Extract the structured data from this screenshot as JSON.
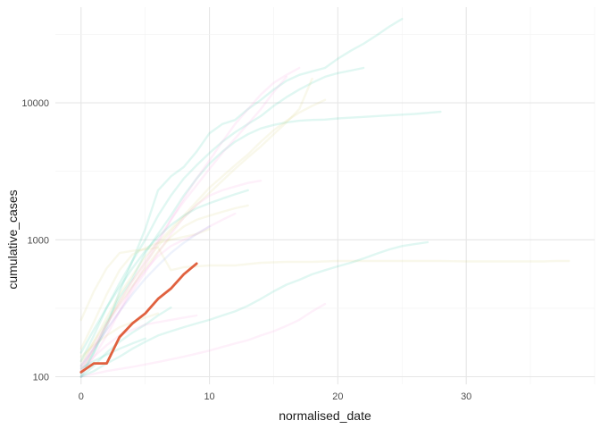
{
  "chart_data": {
    "type": "line",
    "title": "",
    "xlabel": "normalised_date",
    "ylabel": "cumulative_cases",
    "xlim": [
      -2,
      40
    ],
    "ylim": [
      88,
      50000
    ],
    "y_scale": "log10",
    "x_ticks": [
      0,
      10,
      20,
      30
    ],
    "x_tick_labels": [
      "0",
      "10",
      "20",
      "30"
    ],
    "y_ticks": [
      100,
      1000,
      10000
    ],
    "y_tick_labels": [
      "100",
      "1000",
      "10000"
    ],
    "grid": true,
    "legend": "none",
    "highlight_color": "#E0613F",
    "background_series_opacity": 0.15,
    "series": [
      {
        "color": "#2CC7A6",
        "highlight": false,
        "x": [
          0,
          1,
          2,
          3,
          4,
          5,
          6,
          7,
          8,
          9,
          10,
          11,
          12,
          13,
          14,
          15,
          16,
          17,
          18,
          19,
          20,
          21,
          22,
          23,
          24,
          25
        ],
        "y": [
          105,
          150,
          230,
          420,
          700,
          1200,
          2300,
          2900,
          3400,
          4400,
          6000,
          7000,
          7500,
          9000,
          10500,
          12500,
          14500,
          16000,
          17000,
          18000,
          21000,
          24000,
          27000,
          31000,
          36000,
          41000
        ]
      },
      {
        "color": "#2CC7A6",
        "highlight": false,
        "x": [
          0,
          1,
          2,
          3,
          4,
          5,
          6,
          7,
          8,
          9,
          10,
          11,
          12,
          13,
          14,
          15,
          16,
          17,
          18,
          19,
          20,
          21,
          22
        ],
        "y": [
          130,
          200,
          320,
          480,
          700,
          1000,
          1500,
          2100,
          2800,
          3500,
          4300,
          5200,
          6100,
          7000,
          8000,
          9500,
          11000,
          12500,
          14000,
          15500,
          16500,
          17200,
          18000
        ]
      },
      {
        "color": "#2CC7A6",
        "highlight": false,
        "x": [
          0,
          1,
          2,
          3,
          4,
          5,
          6,
          7,
          8,
          9,
          10,
          11,
          12,
          13,
          14,
          15,
          16,
          17,
          18,
          19,
          20,
          22,
          24,
          26,
          28
        ],
        "y": [
          100,
          150,
          250,
          380,
          520,
          800,
          1100,
          1500,
          2100,
          2800,
          3600,
          4400,
          5200,
          5900,
          6500,
          6900,
          7200,
          7400,
          7500,
          7550,
          7700,
          7900,
          8100,
          8300,
          8600
        ]
      },
      {
        "color": "#D9D176",
        "highlight": false,
        "x": [
          0,
          1,
          2,
          3,
          4,
          5,
          6,
          7,
          8,
          9,
          10,
          11,
          12,
          13,
          14,
          15,
          16,
          17,
          18,
          19
        ],
        "y": [
          120,
          180,
          270,
          400,
          550,
          750,
          950,
          1200,
          1500,
          1900,
          2400,
          2900,
          3500,
          4200,
          5200,
          6300,
          7400,
          8500,
          9500,
          10500
        ]
      },
      {
        "color": "#D9D176",
        "highlight": false,
        "x": [
          0,
          1,
          2,
          3,
          4,
          5,
          6,
          7,
          8,
          9,
          10,
          11,
          12,
          13,
          14,
          15,
          16,
          17,
          18
        ],
        "y": [
          110,
          160,
          240,
          360,
          500,
          680,
          900,
          1150,
          1450,
          1800,
          2200,
          2700,
          3300,
          4000,
          4800,
          5900,
          7200,
          9000,
          15000
        ]
      },
      {
        "color": "#D9D176",
        "highlight": false,
        "x": [
          0,
          1,
          2,
          3,
          4,
          5,
          6,
          7,
          8,
          9,
          10,
          12,
          14,
          16,
          18,
          20,
          22,
          24,
          26,
          28,
          30,
          32,
          34,
          36,
          37,
          38
        ],
        "y": [
          260,
          420,
          620,
          800,
          830,
          850,
          880,
          600,
          630,
          640,
          650,
          650,
          680,
          690,
          690,
          700,
          700,
          700,
          700,
          700,
          695,
          695,
          695,
          695,
          700,
          700
        ]
      },
      {
        "color": "#D9D176",
        "highlight": false,
        "x": [
          0,
          1,
          2,
          3,
          4,
          5,
          6,
          7,
          8,
          9,
          10
        ],
        "y": [
          160,
          250,
          400,
          600,
          780,
          870,
          950,
          1000,
          1050,
          1100,
          1200
        ]
      },
      {
        "color": "#F59ADE",
        "highlight": false,
        "x": [
          0,
          1,
          2,
          3,
          4,
          5,
          6,
          7,
          8,
          9,
          10,
          11,
          12,
          13,
          14,
          15,
          16,
          17
        ],
        "y": [
          100,
          140,
          200,
          300,
          450,
          650,
          950,
          1400,
          2000,
          2800,
          3800,
          5200,
          7000,
          9000,
          11500,
          14000,
          16000,
          18000
        ]
      },
      {
        "color": "#F59ADE",
        "highlight": false,
        "x": [
          0,
          1,
          2,
          3,
          4,
          5,
          6,
          7,
          8,
          9,
          10,
          11,
          12,
          13,
          14,
          15,
          16
        ],
        "y": [
          110,
          160,
          240,
          350,
          500,
          700,
          1000,
          1400,
          1900,
          2500,
          3300,
          4300,
          5500,
          7000,
          9000,
          12000,
          15500
        ]
      },
      {
        "color": "#F59ADE",
        "highlight": false,
        "x": [
          0,
          1,
          2,
          3,
          4,
          5,
          6,
          7,
          8,
          9,
          10,
          11,
          12,
          13,
          14
        ],
        "y": [
          115,
          160,
          220,
          300,
          420,
          580,
          800,
          1100,
          1450,
          1800,
          2100,
          2300,
          2450,
          2600,
          2700
        ]
      },
      {
        "color": "#F59ADE",
        "highlight": false,
        "x": [
          0,
          2,
          4,
          6,
          8,
          10,
          11,
          12,
          13,
          14,
          15,
          16,
          17,
          18,
          19
        ],
        "y": [
          100,
          110,
          118,
          128,
          140,
          155,
          165,
          175,
          185,
          200,
          215,
          235,
          260,
          300,
          340
        ]
      },
      {
        "color": "#F59ADE",
        "highlight": false,
        "x": [
          0,
          1,
          2,
          3,
          4,
          5,
          6,
          7,
          8,
          9,
          10,
          11,
          12
        ],
        "y": [
          120,
          170,
          240,
          330,
          450,
          600,
          760,
          900,
          1000,
          1100,
          1250,
          1400,
          1550
        ]
      },
      {
        "color": "#2CC7A6",
        "highlight": false,
        "x": [
          0,
          1,
          2,
          3,
          4,
          5,
          6,
          7,
          8,
          9,
          10,
          11,
          12,
          13,
          14,
          15,
          16,
          17,
          18,
          19,
          20,
          21,
          22,
          23,
          24,
          25,
          26,
          27
        ],
        "y": [
          100,
          110,
          125,
          140,
          160,
          180,
          200,
          215,
          230,
          245,
          260,
          280,
          300,
          330,
          370,
          420,
          470,
          510,
          560,
          600,
          640,
          680,
          730,
          790,
          850,
          900,
          930,
          960
        ]
      },
      {
        "color": "#2CC7A6",
        "highlight": false,
        "x": [
          0,
          1,
          2,
          3,
          4,
          5,
          6,
          7,
          8,
          9,
          10,
          11,
          12,
          13
        ],
        "y": [
          150,
          220,
          320,
          450,
          620,
          830,
          1050,
          1280,
          1500,
          1700,
          1850,
          2000,
          2150,
          2300
        ]
      },
      {
        "color": "#2CC7A6",
        "highlight": false,
        "x": [
          0,
          1,
          2,
          3,
          4,
          5,
          6,
          7
        ],
        "y": [
          100,
          120,
          150,
          180,
          210,
          240,
          280,
          320
        ]
      },
      {
        "color": "#D9D176",
        "highlight": false,
        "x": [
          0,
          1,
          2,
          3,
          4,
          5,
          6,
          7,
          8,
          9,
          10,
          11,
          12,
          13
        ],
        "y": [
          130,
          180,
          250,
          340,
          460,
          620,
          820,
          1050,
          1250,
          1400,
          1500,
          1600,
          1700,
          1780
        ]
      },
      {
        "color": "#F59ADE",
        "highlight": false,
        "x": [
          0,
          1,
          2,
          3,
          4,
          5,
          6,
          7,
          8,
          9
        ],
        "y": [
          110,
          140,
          170,
          200,
          220,
          240,
          250,
          260,
          270,
          280
        ]
      },
      {
        "color": "#D9D176",
        "highlight": false,
        "x": [
          0,
          1,
          2,
          3,
          4,
          5,
          6
        ],
        "y": [
          140,
          170,
          200,
          230,
          250,
          270,
          290
        ]
      },
      {
        "color": "#2CC7A6",
        "highlight": false,
        "x": [
          0,
          1,
          2,
          3,
          4,
          5
        ],
        "y": [
          115,
          130,
          145,
          160,
          175,
          190
        ]
      },
      {
        "color": "#8AA6E8",
        "highlight": false,
        "x": [
          0,
          1,
          2,
          3,
          4,
          5,
          6,
          7,
          8,
          9,
          10
        ],
        "y": [
          120,
          160,
          220,
          300,
          400,
          520,
          650,
          800,
          950,
          1100,
          1250
        ]
      },
      {
        "color": "#E0613F",
        "highlight": true,
        "x": [
          0,
          1,
          2,
          3,
          4,
          5,
          6,
          7,
          8,
          9
        ],
        "y": [
          108,
          125,
          125,
          195,
          245,
          290,
          370,
          440,
          560,
          670
        ]
      }
    ]
  }
}
